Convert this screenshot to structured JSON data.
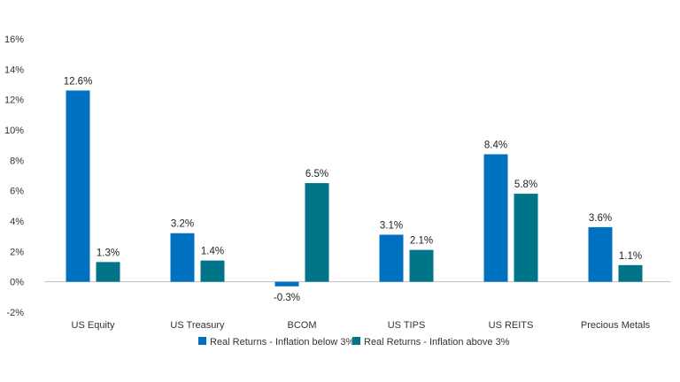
{
  "chart_data": {
    "type": "bar",
    "categories": [
      "US Equity",
      "US Treasury",
      "BCOM",
      "US TIPS",
      "US REITS",
      "Precious Metals"
    ],
    "series": [
      {
        "name": "Real Returns - Inflation below 3%",
        "color": "#0070C0",
        "values": [
          12.6,
          3.2,
          -0.3,
          3.1,
          8.4,
          3.6
        ],
        "labels": [
          "12.6%",
          "3.2%",
          "-0.3%",
          "3.1%",
          "8.4%",
          "3.6%"
        ]
      },
      {
        "name": "Real Returns - Inflation above 3%",
        "color": "#00758A",
        "values": [
          1.3,
          1.4,
          6.5,
          2.1,
          5.8,
          1.1
        ],
        "labels": [
          "1.3%",
          "1.4%",
          "6.5%",
          "2.1%",
          "5.8%",
          "1.1%"
        ]
      }
    ],
    "ylim": [
      -2,
      16
    ],
    "yticks": [
      "-2%",
      "0%",
      "2%",
      "4%",
      "6%",
      "8%",
      "10%",
      "12%",
      "14%",
      "16%"
    ],
    "ytick_values": [
      -2,
      0,
      2,
      4,
      6,
      8,
      10,
      12,
      14,
      16
    ],
    "grid": false,
    "legend_position": "bottom-center"
  }
}
